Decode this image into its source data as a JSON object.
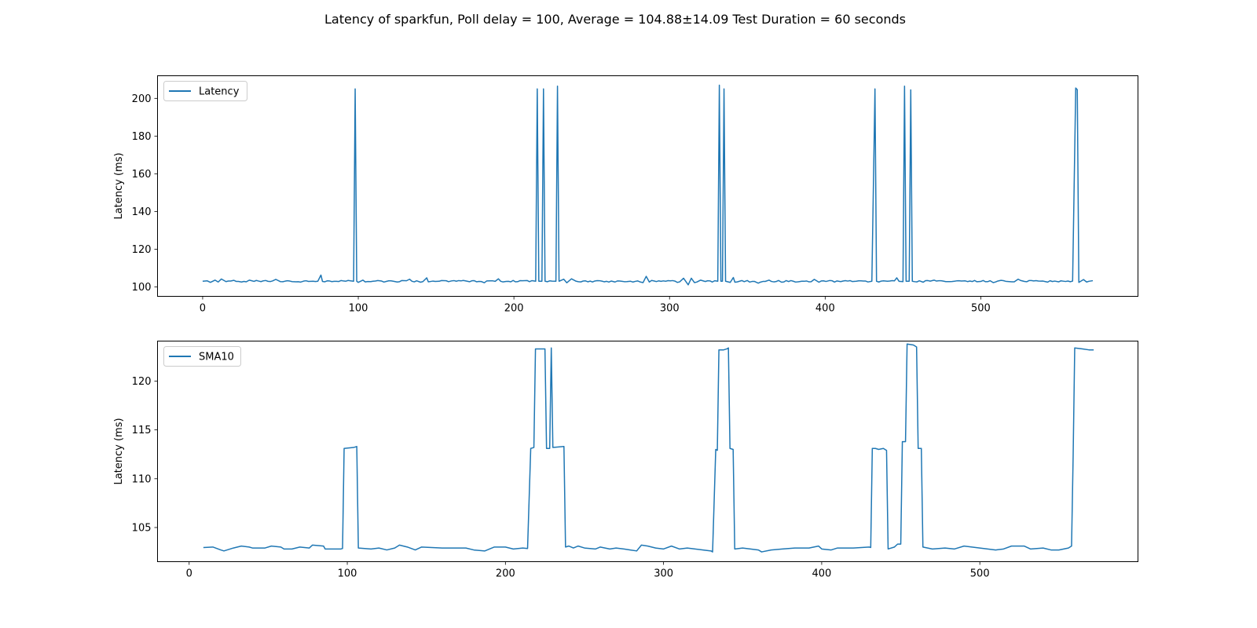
{
  "figure": {
    "title": "Latency of sparkfun, Poll delay = 100, Average = 104.88±14.09 Test Duration = 60 seconds"
  },
  "colors": {
    "series": "#1f77b4",
    "axes": "#000000",
    "legend_border": "#cccccc"
  },
  "chart_data": [
    {
      "type": "line",
      "title": "",
      "xlabel": "",
      "ylabel": "Latency (ms)",
      "xlim": [
        -29,
        601
      ],
      "ylim": [
        95,
        212
      ],
      "xticks": [
        0,
        100,
        200,
        300,
        400,
        500
      ],
      "yticks": [
        100,
        120,
        140,
        160,
        180,
        200
      ],
      "grid": false,
      "legend": "upper-left",
      "baseline": 103,
      "x_max": 572,
      "series": [
        {
          "name": "Latency",
          "points": [
            [
              0,
              103
            ],
            [
              3,
              103.2
            ],
            [
              5,
              102.4
            ],
            [
              8,
              103.6
            ],
            [
              10,
              102.6
            ],
            [
              12,
              104.2
            ],
            [
              15,
              102.8
            ],
            [
              20,
              103.5
            ],
            [
              25,
              102.6
            ],
            [
              30,
              103.6
            ],
            [
              36,
              103.1
            ],
            [
              45,
              103.2
            ],
            [
              47,
              104
            ],
            [
              50,
              102.8
            ],
            [
              56,
              103.1
            ],
            [
              60,
              102.7
            ],
            [
              65,
              103.1
            ],
            [
              74,
              103
            ],
            [
              76,
              106.3
            ],
            [
              77,
              102.9
            ],
            [
              97,
              103
            ],
            [
              98,
              205
            ],
            [
              99,
              103
            ],
            [
              100,
              102.4
            ],
            [
              103,
              103.6
            ],
            [
              108,
              102.8
            ],
            [
              115,
              103.1
            ],
            [
              125,
              102.6
            ],
            [
              133,
              104.1
            ],
            [
              140,
              102.5
            ],
            [
              144,
              104.8
            ],
            [
              145,
              102.7
            ],
            [
              152,
              103
            ],
            [
              160,
              103.2
            ],
            [
              170,
              103
            ],
            [
              181,
              102.2
            ],
            [
              185,
              103.2
            ],
            [
              190,
              104.3
            ],
            [
              195,
              102.9
            ],
            [
              214,
              103
            ],
            [
              215,
              205
            ],
            [
              216,
              103
            ],
            [
              218,
              103
            ],
            [
              219,
              205
            ],
            [
              220,
              103
            ],
            [
              227,
              103
            ],
            [
              228,
              206.5
            ],
            [
              229,
              103
            ],
            [
              232,
              104.1
            ],
            [
              234,
              102.2
            ],
            [
              237,
              104.3
            ],
            [
              240,
              103
            ],
            [
              255,
              103.3
            ],
            [
              265,
              102.6
            ],
            [
              275,
              103
            ],
            [
              283,
              102.3
            ],
            [
              285,
              105.6
            ],
            [
              287,
              102.6
            ],
            [
              296,
              103.2
            ],
            [
              305,
              102.4
            ],
            [
              309,
              104.6
            ],
            [
              312,
              101.1
            ],
            [
              314,
              104.6
            ],
            [
              316,
              102.3
            ],
            [
              320,
              103.6
            ],
            [
              331,
              103
            ],
            [
              332,
              207
            ],
            [
              333,
              103
            ],
            [
              334,
              103
            ],
            [
              335,
              205
            ],
            [
              336,
              103
            ],
            [
              339,
              102.4
            ],
            [
              341,
              105
            ],
            [
              342,
              102.5
            ],
            [
              350,
              103.4
            ],
            [
              357,
              102
            ],
            [
              364,
              103.6
            ],
            [
              372,
              102.5
            ],
            [
              385,
              103
            ],
            [
              393,
              104
            ],
            [
              396,
              102.5
            ],
            [
              403,
              103.4
            ],
            [
              410,
              102.8
            ],
            [
              420,
              103
            ],
            [
              430,
              103
            ],
            [
              432,
              205
            ],
            [
              433,
              103
            ],
            [
              440,
              103
            ],
            [
              446,
              104.8
            ],
            [
              450,
              102.8
            ],
            [
              451,
              206.5
            ],
            [
              452,
              103
            ],
            [
              454,
              103
            ],
            [
              455,
              204.5
            ],
            [
              456,
              103
            ],
            [
              463,
              102.5
            ],
            [
              470,
              103.6
            ],
            [
              480,
              102.8
            ],
            [
              490,
              103.2
            ],
            [
              500,
              102.9
            ],
            [
              508,
              102.3
            ],
            [
              513,
              103.5
            ],
            [
              520,
              102.7
            ],
            [
              524,
              104.1
            ],
            [
              528,
              102.9
            ],
            [
              540,
              103.1
            ],
            [
              550,
              102.7
            ],
            [
              559,
              103.1
            ],
            [
              561,
              205.5
            ],
            [
              562,
              204.6
            ],
            [
              563,
              102.4
            ],
            [
              566,
              103.9
            ],
            [
              568,
              102.6
            ],
            [
              572,
              103.3
            ]
          ]
        }
      ]
    },
    {
      "type": "line",
      "title": "",
      "xlabel": "",
      "ylabel": "Latency (ms)",
      "xlim": [
        -20,
        600
      ],
      "ylim": [
        101.5,
        124.1
      ],
      "xticks": [
        0,
        100,
        200,
        300,
        400,
        500
      ],
      "yticks": [
        105,
        110,
        115,
        120
      ],
      "grid": false,
      "legend": "upper-left",
      "series": [
        {
          "name": "SMA10",
          "points": [
            [
              9,
              102.95
            ],
            [
              15,
              103
            ],
            [
              20,
              102.7
            ],
            [
              22,
              102.6
            ],
            [
              28,
              102.9
            ],
            [
              33,
              103.1
            ],
            [
              38,
              103
            ],
            [
              40,
              102.9
            ],
            [
              48,
              102.9
            ],
            [
              52,
              103.1
            ],
            [
              58,
              103
            ],
            [
              60,
              102.8
            ],
            [
              65,
              102.8
            ],
            [
              70,
              103
            ],
            [
              76,
              102.9
            ],
            [
              78,
              103.2
            ],
            [
              85,
              103.1
            ],
            [
              86,
              102.8
            ],
            [
              90,
              102.8
            ],
            [
              96,
              102.8
            ],
            [
              97,
              102.85
            ],
            [
              98,
              113.1
            ],
            [
              104,
              113.2
            ],
            [
              106,
              113.3
            ],
            [
              107,
              102.9
            ],
            [
              115,
              102.8
            ],
            [
              120,
              102.9
            ],
            [
              125,
              102.7
            ],
            [
              130,
              102.9
            ],
            [
              133,
              103.2
            ],
            [
              138,
              103
            ],
            [
              143,
              102.7
            ],
            [
              147,
              103
            ],
            [
              160,
              102.9
            ],
            [
              175,
              102.9
            ],
            [
              180,
              102.7
            ],
            [
              187,
              102.6
            ],
            [
              193,
              103
            ],
            [
              200,
              103
            ],
            [
              205,
              102.8
            ],
            [
              211,
              102.9
            ],
            [
              214,
              102.85
            ],
            [
              216,
              113.1
            ],
            [
              218,
              113.2
            ],
            [
              219,
              123.3
            ],
            [
              225,
              123.3
            ],
            [
              226,
              113.1
            ],
            [
              228,
              113.1
            ],
            [
              229,
              123.4
            ],
            [
              230,
              113.2
            ],
            [
              237,
              113.3
            ],
            [
              238,
              103
            ],
            [
              240,
              103.1
            ],
            [
              243,
              102.9
            ],
            [
              246,
              103.1
            ],
            [
              250,
              102.9
            ],
            [
              257,
              102.8
            ],
            [
              260,
              103
            ],
            [
              266,
              102.8
            ],
            [
              270,
              102.9
            ],
            [
              275,
              102.8
            ],
            [
              279,
              102.7
            ],
            [
              283,
              102.6
            ],
            [
              286,
              103.2
            ],
            [
              290,
              103.1
            ],
            [
              295,
              102.9
            ],
            [
              300,
              102.8
            ],
            [
              305,
              103.1
            ],
            [
              310,
              102.8
            ],
            [
              315,
              102.9
            ],
            [
              320,
              102.8
            ],
            [
              325,
              102.7
            ],
            [
              330,
              102.6
            ],
            [
              331,
              102.5
            ],
            [
              333,
              113
            ],
            [
              334,
              112.9
            ],
            [
              335,
              123.2
            ],
            [
              338,
              123.2
            ],
            [
              340,
              123.3
            ],
            [
              341,
              123.4
            ],
            [
              342,
              113.1
            ],
            [
              344,
              113
            ],
            [
              345,
              102.8
            ],
            [
              350,
              102.9
            ],
            [
              355,
              102.8
            ],
            [
              360,
              102.7
            ],
            [
              362,
              102.5
            ],
            [
              368,
              102.7
            ],
            [
              375,
              102.8
            ],
            [
              383,
              102.9
            ],
            [
              392,
              102.9
            ],
            [
              398,
              103.1
            ],
            [
              400,
              102.8
            ],
            [
              406,
              102.7
            ],
            [
              410,
              102.9
            ],
            [
              420,
              102.9
            ],
            [
              430,
              103
            ],
            [
              431,
              102.95
            ],
            [
              432,
              113.1
            ],
            [
              434,
              113.1
            ],
            [
              436,
              113
            ],
            [
              439,
              113.1
            ],
            [
              441,
              112.9
            ],
            [
              442,
              102.8
            ],
            [
              446,
              103
            ],
            [
              448,
              103.3
            ],
            [
              450,
              103.3
            ],
            [
              451,
              113.8
            ],
            [
              453,
              113.8
            ],
            [
              454,
              123.8
            ],
            [
              458,
              123.7
            ],
            [
              460,
              123.5
            ],
            [
              461,
              113.1
            ],
            [
              463,
              113.1
            ],
            [
              464,
              103
            ],
            [
              470,
              102.8
            ],
            [
              478,
              102.9
            ],
            [
              484,
              102.8
            ],
            [
              490,
              103.1
            ],
            [
              495,
              103
            ],
            [
              500,
              102.9
            ],
            [
              505,
              102.8
            ],
            [
              510,
              102.7
            ],
            [
              515,
              102.8
            ],
            [
              520,
              103.1
            ],
            [
              528,
              103.1
            ],
            [
              532,
              102.8
            ],
            [
              540,
              102.9
            ],
            [
              545,
              102.7
            ],
            [
              550,
              102.7
            ],
            [
              556,
              102.9
            ],
            [
              558,
              103.1
            ],
            [
              559,
              112.3
            ],
            [
              560,
              123.4
            ],
            [
              565,
              123.3
            ],
            [
              569,
              123.2
            ],
            [
              572,
              123.2
            ]
          ]
        }
      ]
    }
  ]
}
